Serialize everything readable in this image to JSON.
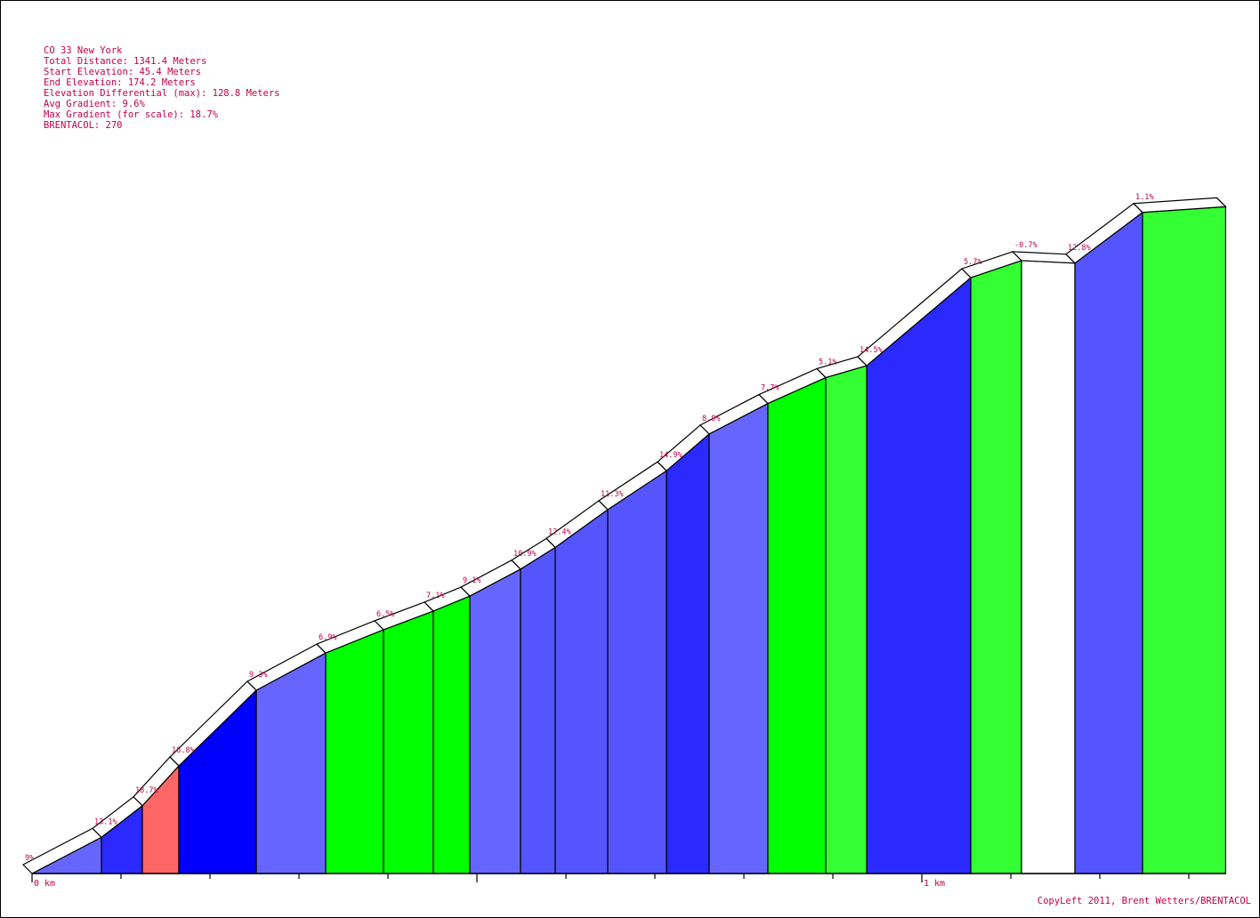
{
  "info": {
    "name": "CO 33 New York",
    "total_distance": "Total Distance: 1341.4 Meters",
    "start_elevation": "Start Elevation: 45.4 Meters",
    "end_elevation": "End Elevation: 174.2 Meters",
    "elevation_differential": "Elevation Differential (max): 128.8 Meters",
    "avg_gradient": "Avg Gradient: 9.6%",
    "max_gradient": "Max Gradient (for scale): 18.7%",
    "brentacol": "BRENTACOL: 270"
  },
  "copyleft": "CopyLeft 2011, Brent Wetters/BRENTACOL",
  "colors": {
    "text": "#c4004a",
    "neg": "#ffffff",
    "g0_6": "#33ff33",
    "g6_8": "#00ff00",
    "g8_10": "#6666ff",
    "g10_13": "#5555ff",
    "g13_15": "#2a2aff",
    "g15_18": "#0000ff",
    "g18_plus": "#ff6666"
  },
  "chart_data": {
    "type": "area",
    "title": "CO 33 New York",
    "x_unit": "km",
    "y_unit": "m",
    "x_ticks": [
      "0 km",
      "1 km"
    ],
    "xlim": [
      0,
      1.3414
    ],
    "ylim": [
      40,
      185
    ],
    "segments": [
      {
        "start_km": 0.0,
        "end_km": 0.078,
        "start_m": 45.4,
        "end_m": 52.4,
        "label": "9%"
      },
      {
        "start_km": 0.078,
        "end_km": 0.124,
        "start_m": 52.4,
        "end_m": 58.5,
        "label": "13.1%"
      },
      {
        "start_km": 0.124,
        "end_km": 0.165,
        "start_m": 58.5,
        "end_m": 66.2,
        "label": "18.7%"
      },
      {
        "start_km": 0.165,
        "end_km": 0.252,
        "start_m": 66.2,
        "end_m": 80.8,
        "label": "16.8%"
      },
      {
        "start_km": 0.252,
        "end_km": 0.33,
        "start_m": 80.8,
        "end_m": 88.0,
        "label": "9.3%"
      },
      {
        "start_km": 0.33,
        "end_km": 0.395,
        "start_m": 88.0,
        "end_m": 92.5,
        "label": "6.9%"
      },
      {
        "start_km": 0.395,
        "end_km": 0.451,
        "start_m": 92.5,
        "end_m": 96.1,
        "label": "6.5%"
      },
      {
        "start_km": 0.451,
        "end_km": 0.492,
        "start_m": 96.1,
        "end_m": 99.0,
        "label": "7.1%"
      },
      {
        "start_km": 0.492,
        "end_km": 0.549,
        "start_m": 99.0,
        "end_m": 104.2,
        "label": "9.1%"
      },
      {
        "start_km": 0.549,
        "end_km": 0.588,
        "start_m": 104.2,
        "end_m": 108.4,
        "label": "10.9%"
      },
      {
        "start_km": 0.588,
        "end_km": 0.647,
        "start_m": 108.4,
        "end_m": 115.7,
        "label": "12.4%"
      },
      {
        "start_km": 0.647,
        "end_km": 0.713,
        "start_m": 115.7,
        "end_m": 123.2,
        "label": "11.3%"
      },
      {
        "start_km": 0.713,
        "end_km": 0.761,
        "start_m": 123.2,
        "end_m": 130.3,
        "label": "14.9%"
      },
      {
        "start_km": 0.761,
        "end_km": 0.827,
        "start_m": 130.3,
        "end_m": 136.2,
        "label": "8.9%"
      },
      {
        "start_km": 0.827,
        "end_km": 0.892,
        "start_m": 136.2,
        "end_m": 141.2,
        "label": "7.7%"
      },
      {
        "start_km": 0.892,
        "end_km": 0.938,
        "start_m": 141.2,
        "end_m": 143.5,
        "label": "5.1%"
      },
      {
        "start_km": 0.938,
        "end_km": 1.055,
        "start_m": 143.5,
        "end_m": 160.5,
        "label": "14.5%"
      },
      {
        "start_km": 1.055,
        "end_km": 1.112,
        "start_m": 160.5,
        "end_m": 163.8,
        "label": "5.7%"
      },
      {
        "start_km": 1.112,
        "end_km": 1.172,
        "start_m": 163.8,
        "end_m": 163.3,
        "label": "-0.7%"
      },
      {
        "start_km": 1.172,
        "end_km": 1.248,
        "start_m": 163.3,
        "end_m": 173.1,
        "label": "12.8%"
      },
      {
        "start_km": 1.248,
        "end_km": 1.3414,
        "start_m": 173.1,
        "end_m": 174.2,
        "label": "1.1%"
      }
    ]
  }
}
